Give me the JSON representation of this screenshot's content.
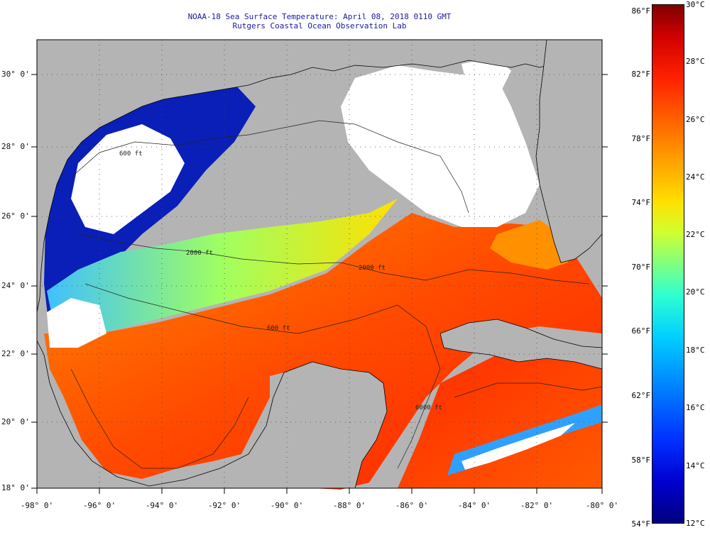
{
  "map": {
    "title": "NOAA-18 Sea Surface Temperature:  April 08, 2018 0110 GMT",
    "subtitle": "Rutgers Coastal Ocean Observation Lab",
    "lat_labels": [
      "30° 0'",
      "28° 0'",
      "26° 0'",
      "24° 0'",
      "22° 0'",
      "20° 0'",
      "18° 0'"
    ],
    "lon_labels": [
      "-98° 0'",
      "-96° 0'",
      "-94° 0'",
      "-92° 0'",
      "-90° 0'",
      "-88° 0'",
      "-86° 0'",
      "-84° 0'",
      "-82° 0'",
      "-80° 0'"
    ],
    "contour_labels": [
      "600 ft",
      "2000 ft",
      "6000 ft",
      "600 ft",
      "2000 ft"
    ],
    "colors": {
      "land": "#b4b4b4",
      "cloud": "#ffffff",
      "coast": "#000000"
    }
  },
  "colorbar": {
    "fahrenheit_labels": [
      "86°F",
      "82°F",
      "78°F",
      "74°F",
      "70°F",
      "66°F",
      "62°F",
      "58°F",
      "54°F"
    ],
    "celsius_labels": [
      "30°C",
      "28°C",
      "26°C",
      "24°C",
      "22°C",
      "20°C",
      "18°C",
      "16°C",
      "14°C",
      "12°C"
    ]
  }
}
